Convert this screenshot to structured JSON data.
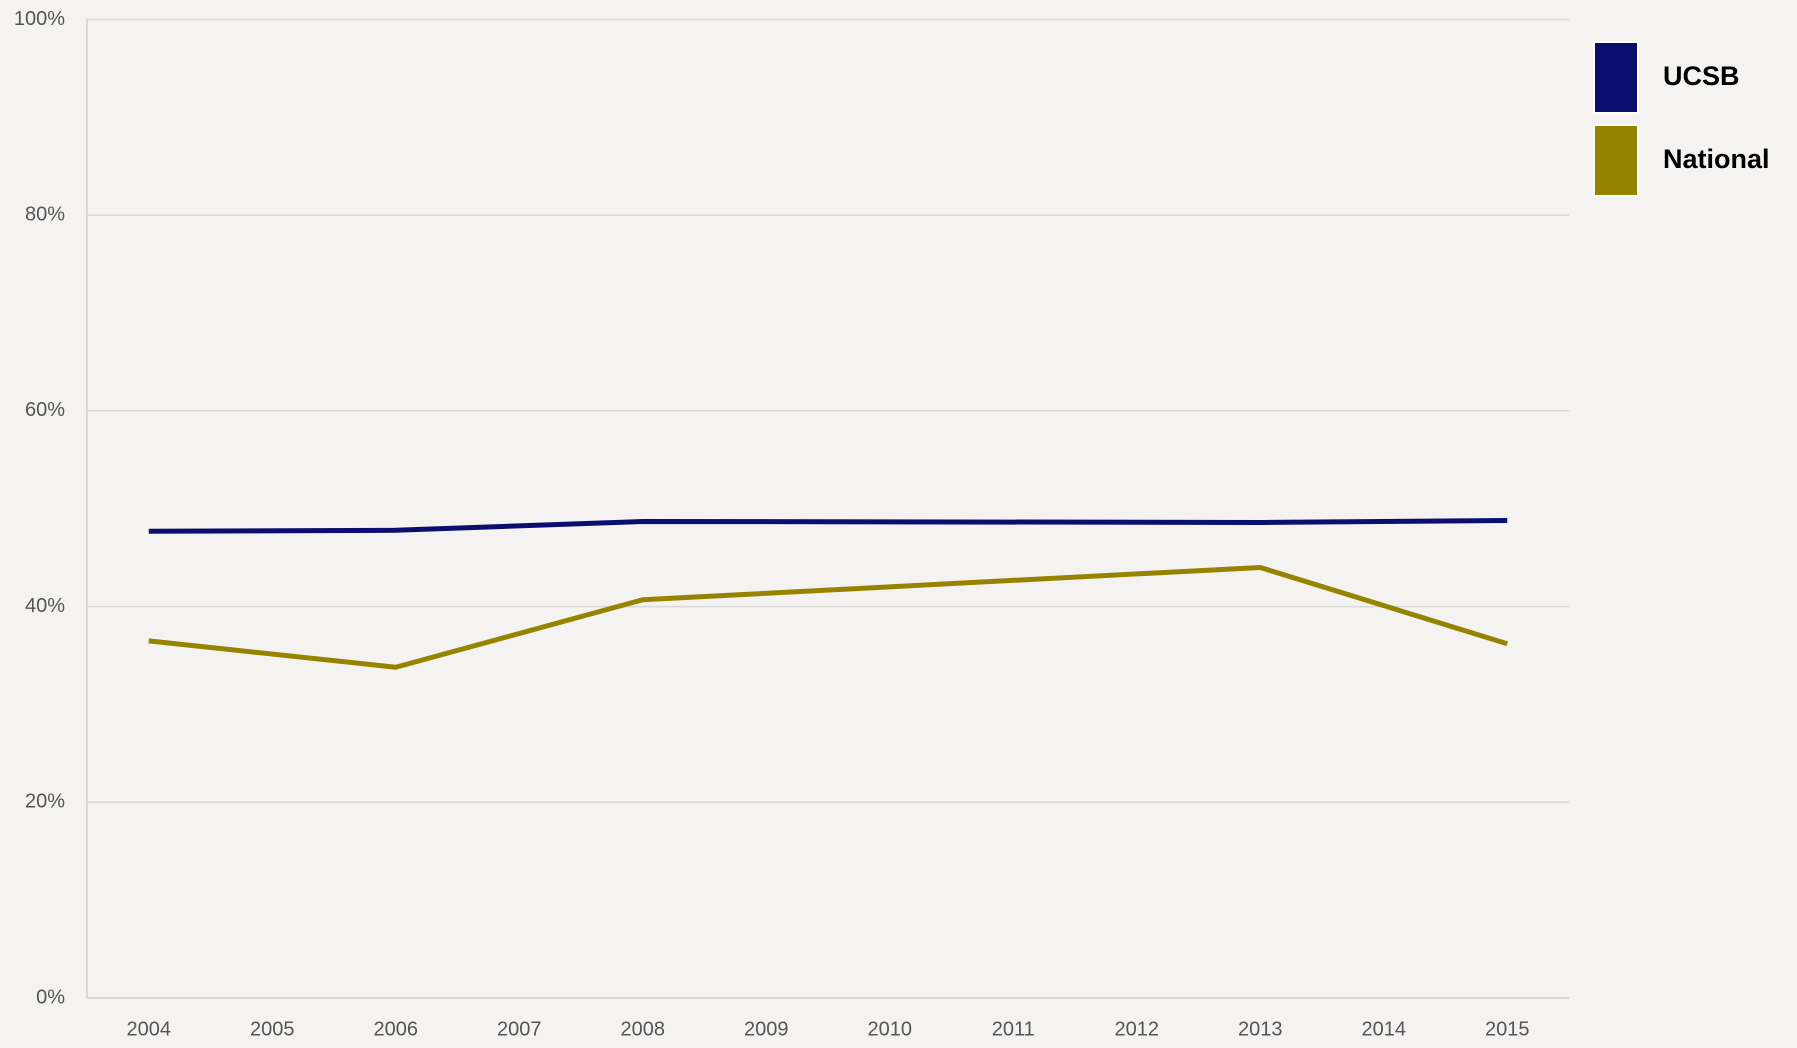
{
  "chart_data": {
    "type": "line",
    "x": [
      2004,
      2006,
      2008,
      2013,
      2015
    ],
    "series": [
      {
        "name": "UCSB",
        "color": "#0b0e6e",
        "values": [
          47.7,
          47.8,
          48.7,
          48.6,
          48.8
        ]
      },
      {
        "name": "National",
        "color": "#968300",
        "values": [
          36.5,
          33.8,
          40.7,
          44.0,
          36.2
        ]
      }
    ],
    "xlim": [
      2003.5,
      2015.5
    ],
    "xticks": [
      2004,
      2005,
      2006,
      2007,
      2008,
      2009,
      2010,
      2011,
      2012,
      2013,
      2014,
      2015
    ],
    "ylim": [
      0,
      100
    ],
    "yticks": [
      {
        "value": 0,
        "label": "0%"
      },
      {
        "value": 20,
        "label": "20%"
      },
      {
        "value": 40,
        "label": "40%"
      },
      {
        "value": 60,
        "label": "60%"
      },
      {
        "value": 80,
        "label": "80%"
      },
      {
        "value": 100,
        "label": "100%"
      }
    ],
    "grid": true,
    "legend": "right"
  }
}
